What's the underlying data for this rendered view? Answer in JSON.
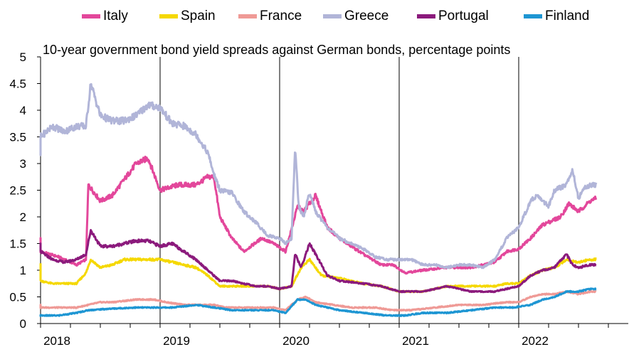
{
  "chart_data": {
    "type": "line",
    "title": "10-year government bond yield spreads against German bonds, percentage points",
    "xlabel": "",
    "ylabel": "",
    "ylim": [
      0,
      5
    ],
    "xlim": [
      2017.9,
      2022.9
    ],
    "y_ticks": [
      "0",
      "0.5",
      "1",
      "1.5",
      "2",
      "2.5",
      "3",
      "3.5",
      "4",
      "4.5",
      "5"
    ],
    "x_ticks": [
      "2018",
      "2019",
      "2020",
      "2021",
      "2022"
    ],
    "grid": "vertical lines at year starts",
    "legend": "top",
    "series": [
      {
        "name": "Italy",
        "color": "#e3479b",
        "points": [
          [
            2017.9,
            1.6
          ],
          [
            2018.0,
            1.35
          ],
          [
            2018.15,
            1.25
          ],
          [
            2018.3,
            1.1
          ],
          [
            2018.38,
            1.2
          ],
          [
            2018.4,
            2.6
          ],
          [
            2018.5,
            2.3
          ],
          [
            2018.6,
            2.4
          ],
          [
            2018.7,
            2.7
          ],
          [
            2018.8,
            3.0
          ],
          [
            2018.9,
            3.1
          ],
          [
            2019.0,
            2.5
          ],
          [
            2019.15,
            2.6
          ],
          [
            2019.3,
            2.6
          ],
          [
            2019.4,
            2.75
          ],
          [
            2019.45,
            2.75
          ],
          [
            2019.5,
            2.0
          ],
          [
            2019.6,
            1.6
          ],
          [
            2019.7,
            1.35
          ],
          [
            2019.85,
            1.6
          ],
          [
            2019.95,
            1.5
          ],
          [
            2020.05,
            1.35
          ],
          [
            2020.15,
            2.2
          ],
          [
            2020.2,
            2.1
          ],
          [
            2020.3,
            2.4
          ],
          [
            2020.4,
            1.8
          ],
          [
            2020.5,
            1.6
          ],
          [
            2020.7,
            1.3
          ],
          [
            2020.85,
            1.1
          ],
          [
            2020.95,
            1.1
          ],
          [
            2021.05,
            0.95
          ],
          [
            2021.2,
            1.0
          ],
          [
            2021.4,
            1.05
          ],
          [
            2021.6,
            1.05
          ],
          [
            2021.8,
            1.15
          ],
          [
            2021.9,
            1.35
          ],
          [
            2022.0,
            1.4
          ],
          [
            2022.1,
            1.6
          ],
          [
            2022.2,
            1.85
          ],
          [
            2022.35,
            2.0
          ],
          [
            2022.42,
            2.25
          ],
          [
            2022.5,
            2.1
          ],
          [
            2022.6,
            2.3
          ],
          [
            2022.65,
            2.35
          ]
        ]
      },
      {
        "name": "Spain",
        "color": "#f5d800",
        "points": [
          [
            2017.9,
            1.15
          ],
          [
            2018.0,
            0.8
          ],
          [
            2018.1,
            0.75
          ],
          [
            2018.2,
            0.75
          ],
          [
            2018.3,
            0.75
          ],
          [
            2018.38,
            0.95
          ],
          [
            2018.42,
            1.2
          ],
          [
            2018.5,
            1.05
          ],
          [
            2018.6,
            1.1
          ],
          [
            2018.7,
            1.2
          ],
          [
            2018.8,
            1.2
          ],
          [
            2018.9,
            1.2
          ],
          [
            2019.0,
            1.2
          ],
          [
            2019.1,
            1.15
          ],
          [
            2019.2,
            1.1
          ],
          [
            2019.3,
            1.05
          ],
          [
            2019.4,
            0.9
          ],
          [
            2019.5,
            0.7
          ],
          [
            2019.6,
            0.7
          ],
          [
            2019.7,
            0.7
          ],
          [
            2019.8,
            0.7
          ],
          [
            2019.9,
            0.7
          ],
          [
            2020.0,
            0.65
          ],
          [
            2020.1,
            0.7
          ],
          [
            2020.18,
            1.05
          ],
          [
            2020.25,
            1.2
          ],
          [
            2020.35,
            0.9
          ],
          [
            2020.5,
            0.85
          ],
          [
            2020.7,
            0.75
          ],
          [
            2020.85,
            0.7
          ],
          [
            2021.0,
            0.6
          ],
          [
            2021.2,
            0.6
          ],
          [
            2021.4,
            0.7
          ],
          [
            2021.6,
            0.7
          ],
          [
            2021.8,
            0.7
          ],
          [
            2021.9,
            0.75
          ],
          [
            2022.0,
            0.75
          ],
          [
            2022.1,
            0.9
          ],
          [
            2022.2,
            1.0
          ],
          [
            2022.3,
            1.05
          ],
          [
            2022.4,
            1.2
          ],
          [
            2022.5,
            1.15
          ],
          [
            2022.6,
            1.2
          ],
          [
            2022.65,
            1.2
          ]
        ]
      },
      {
        "name": "France",
        "color": "#ef9a96",
        "points": [
          [
            2017.9,
            0.35
          ],
          [
            2018.0,
            0.3
          ],
          [
            2018.15,
            0.3
          ],
          [
            2018.3,
            0.3
          ],
          [
            2018.4,
            0.35
          ],
          [
            2018.5,
            0.4
          ],
          [
            2018.6,
            0.4
          ],
          [
            2018.8,
            0.45
          ],
          [
            2018.95,
            0.45
          ],
          [
            2019.05,
            0.4
          ],
          [
            2019.2,
            0.35
          ],
          [
            2019.35,
            0.35
          ],
          [
            2019.45,
            0.35
          ],
          [
            2019.55,
            0.3
          ],
          [
            2019.7,
            0.3
          ],
          [
            2019.85,
            0.3
          ],
          [
            2019.95,
            0.3
          ],
          [
            2020.05,
            0.25
          ],
          [
            2020.15,
            0.45
          ],
          [
            2020.22,
            0.5
          ],
          [
            2020.3,
            0.4
          ],
          [
            2020.45,
            0.35
          ],
          [
            2020.6,
            0.3
          ],
          [
            2020.8,
            0.3
          ],
          [
            2020.95,
            0.25
          ],
          [
            2021.1,
            0.25
          ],
          [
            2021.3,
            0.3
          ],
          [
            2021.5,
            0.35
          ],
          [
            2021.7,
            0.35
          ],
          [
            2021.9,
            0.4
          ],
          [
            2022.0,
            0.4
          ],
          [
            2022.1,
            0.5
          ],
          [
            2022.2,
            0.55
          ],
          [
            2022.3,
            0.55
          ],
          [
            2022.4,
            0.6
          ],
          [
            2022.5,
            0.55
          ],
          [
            2022.6,
            0.6
          ],
          [
            2022.65,
            0.6
          ]
        ]
      },
      {
        "name": "Greece",
        "color": "#b1b5d8",
        "points": [
          [
            2017.9,
            3.35
          ],
          [
            2017.95,
            3.2
          ],
          [
            2018.0,
            3.5
          ],
          [
            2018.1,
            3.7
          ],
          [
            2018.2,
            3.6
          ],
          [
            2018.3,
            3.7
          ],
          [
            2018.38,
            3.7
          ],
          [
            2018.42,
            4.5
          ],
          [
            2018.5,
            3.9
          ],
          [
            2018.6,
            3.8
          ],
          [
            2018.7,
            3.8
          ],
          [
            2018.8,
            3.9
          ],
          [
            2018.9,
            4.1
          ],
          [
            2019.0,
            4.05
          ],
          [
            2019.1,
            3.75
          ],
          [
            2019.2,
            3.7
          ],
          [
            2019.3,
            3.55
          ],
          [
            2019.4,
            3.2
          ],
          [
            2019.45,
            2.8
          ],
          [
            2019.5,
            2.5
          ],
          [
            2019.6,
            2.45
          ],
          [
            2019.7,
            2.1
          ],
          [
            2019.8,
            1.9
          ],
          [
            2019.9,
            1.65
          ],
          [
            2020.0,
            1.6
          ],
          [
            2020.05,
            1.5
          ],
          [
            2020.1,
            1.6
          ],
          [
            2020.13,
            3.3
          ],
          [
            2020.16,
            2.2
          ],
          [
            2020.2,
            2.0
          ],
          [
            2020.25,
            2.45
          ],
          [
            2020.3,
            2.1
          ],
          [
            2020.4,
            1.8
          ],
          [
            2020.5,
            1.6
          ],
          [
            2020.6,
            1.5
          ],
          [
            2020.7,
            1.4
          ],
          [
            2020.8,
            1.25
          ],
          [
            2020.9,
            1.2
          ],
          [
            2021.0,
            1.2
          ],
          [
            2021.1,
            1.2
          ],
          [
            2021.2,
            1.1
          ],
          [
            2021.3,
            1.1
          ],
          [
            2021.4,
            1.05
          ],
          [
            2021.5,
            1.1
          ],
          [
            2021.6,
            1.1
          ],
          [
            2021.7,
            1.05
          ],
          [
            2021.8,
            1.2
          ],
          [
            2021.9,
            1.6
          ],
          [
            2022.0,
            1.8
          ],
          [
            2022.1,
            2.3
          ],
          [
            2022.15,
            2.4
          ],
          [
            2022.25,
            2.2
          ],
          [
            2022.3,
            2.5
          ],
          [
            2022.4,
            2.6
          ],
          [
            2022.45,
            2.9
          ],
          [
            2022.5,
            2.35
          ],
          [
            2022.55,
            2.55
          ],
          [
            2022.6,
            2.6
          ],
          [
            2022.65,
            2.6
          ]
        ]
      },
      {
        "name": "Portugal",
        "color": "#8b1a7c",
        "points": [
          [
            2017.9,
            1.5
          ],
          [
            2018.0,
            1.35
          ],
          [
            2018.1,
            1.2
          ],
          [
            2018.2,
            1.15
          ],
          [
            2018.3,
            1.2
          ],
          [
            2018.38,
            1.3
          ],
          [
            2018.42,
            1.75
          ],
          [
            2018.5,
            1.45
          ],
          [
            2018.6,
            1.45
          ],
          [
            2018.7,
            1.5
          ],
          [
            2018.8,
            1.55
          ],
          [
            2018.9,
            1.55
          ],
          [
            2019.0,
            1.45
          ],
          [
            2019.1,
            1.5
          ],
          [
            2019.2,
            1.35
          ],
          [
            2019.3,
            1.2
          ],
          [
            2019.4,
            1.0
          ],
          [
            2019.5,
            0.8
          ],
          [
            2019.6,
            0.8
          ],
          [
            2019.7,
            0.75
          ],
          [
            2019.8,
            0.7
          ],
          [
            2019.9,
            0.7
          ],
          [
            2020.0,
            0.65
          ],
          [
            2020.1,
            0.7
          ],
          [
            2020.13,
            1.3
          ],
          [
            2020.18,
            1.05
          ],
          [
            2020.25,
            1.5
          ],
          [
            2020.3,
            1.3
          ],
          [
            2020.4,
            0.9
          ],
          [
            2020.5,
            0.8
          ],
          [
            2020.7,
            0.75
          ],
          [
            2020.85,
            0.7
          ],
          [
            2021.0,
            0.6
          ],
          [
            2021.2,
            0.6
          ],
          [
            2021.4,
            0.7
          ],
          [
            2021.6,
            0.6
          ],
          [
            2021.8,
            0.6
          ],
          [
            2021.9,
            0.65
          ],
          [
            2022.0,
            0.7
          ],
          [
            2022.1,
            0.9
          ],
          [
            2022.2,
            1.0
          ],
          [
            2022.3,
            1.05
          ],
          [
            2022.4,
            1.3
          ],
          [
            2022.45,
            1.1
          ],
          [
            2022.5,
            1.05
          ],
          [
            2022.6,
            1.1
          ],
          [
            2022.65,
            1.1
          ]
        ]
      },
      {
        "name": "Finland",
        "color": "#1e96d3",
        "points": [
          [
            2017.9,
            0.15
          ],
          [
            2018.0,
            0.15
          ],
          [
            2018.15,
            0.15
          ],
          [
            2018.3,
            0.2
          ],
          [
            2018.4,
            0.25
          ],
          [
            2018.6,
            0.28
          ],
          [
            2018.8,
            0.3
          ],
          [
            2018.95,
            0.3
          ],
          [
            2019.1,
            0.3
          ],
          [
            2019.3,
            0.35
          ],
          [
            2019.45,
            0.3
          ],
          [
            2019.6,
            0.25
          ],
          [
            2019.8,
            0.25
          ],
          [
            2019.95,
            0.25
          ],
          [
            2020.05,
            0.2
          ],
          [
            2020.15,
            0.45
          ],
          [
            2020.22,
            0.45
          ],
          [
            2020.3,
            0.35
          ],
          [
            2020.5,
            0.25
          ],
          [
            2020.7,
            0.2
          ],
          [
            2020.9,
            0.15
          ],
          [
            2021.05,
            0.15
          ],
          [
            2021.2,
            0.2
          ],
          [
            2021.4,
            0.2
          ],
          [
            2021.6,
            0.25
          ],
          [
            2021.8,
            0.3
          ],
          [
            2021.95,
            0.3
          ],
          [
            2022.1,
            0.35
          ],
          [
            2022.2,
            0.45
          ],
          [
            2022.3,
            0.5
          ],
          [
            2022.4,
            0.6
          ],
          [
            2022.5,
            0.6
          ],
          [
            2022.6,
            0.65
          ],
          [
            2022.65,
            0.65
          ]
        ]
      }
    ]
  }
}
